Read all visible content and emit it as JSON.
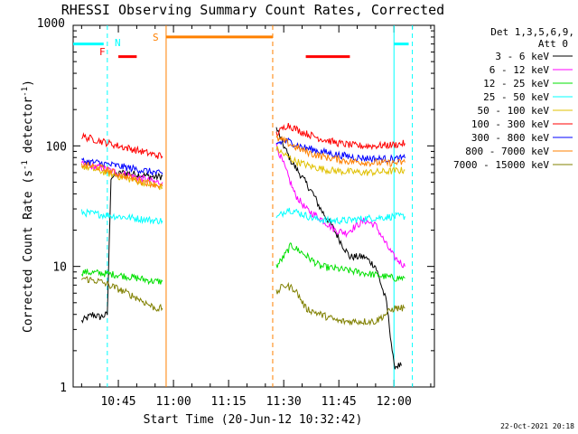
{
  "chart_data": {
    "type": "line",
    "title": "RHESSI Observing Summary Count Rates, Corrected",
    "xlabel": "Start Time (20-Jun-12 10:32:42)",
    "ylabel_main": "Corrected Count Rate (s",
    "ylabel_sup1": "-1",
    "ylabel_mid": " detector",
    "ylabel_sup2": "-1",
    "ylabel_end": ")",
    "y_scale": "log",
    "ylim": [
      1,
      1000
    ],
    "xlim": [
      "10:32:42",
      "12:11:00"
    ],
    "xticks": [
      "10:45",
      "11:00",
      "11:15",
      "11:30",
      "11:45",
      "12:00"
    ],
    "yticks": [
      "1",
      "10",
      "100",
      "1000"
    ],
    "legend_header": [
      "Det 1,3,5,6,9,",
      "Att 0"
    ],
    "legend_placement": "right",
    "footer_date": "22-Oct-2021 20:18",
    "flags": {
      "N_label": "N",
      "F_label": "F",
      "S_label": "S"
    },
    "series": [
      {
        "name": "3 - 6 keV",
        "color": "#000000",
        "segments": [
          [
            [
              "10:35",
              3.5
            ],
            [
              "10:38",
              4
            ],
            [
              "10:40",
              3.8
            ],
            [
              "10:42",
              4
            ],
            [
              "10:43",
              55
            ],
            [
              "10:46",
              60
            ],
            [
              "10:50",
              58
            ],
            [
              "10:55",
              55
            ],
            [
              "10:57",
              56
            ]
          ],
          [
            [
              "11:28",
              140
            ],
            [
              "11:30",
              100
            ],
            [
              "11:32",
              75
            ],
            [
              "11:35",
              55
            ],
            [
              "11:38",
              40
            ],
            [
              "11:40",
              30
            ],
            [
              "11:43",
              22
            ],
            [
              "11:46",
              15
            ],
            [
              "11:48",
              12
            ],
            [
              "11:52",
              12
            ],
            [
              "11:55",
              10
            ],
            [
              "11:58",
              5
            ],
            [
              "12:00",
              1.5
            ],
            [
              "12:02",
              1.5
            ]
          ]
        ]
      },
      {
        "name": "6 - 12 keV",
        "color": "#ff00ff",
        "segments": [
          [
            [
              "10:35",
              70
            ],
            [
              "10:40",
              66
            ],
            [
              "10:45",
              60
            ],
            [
              "10:50",
              55
            ],
            [
              "10:55",
              50
            ],
            [
              "10:57",
              50
            ]
          ],
          [
            [
              "11:28",
              100
            ],
            [
              "11:30",
              70
            ],
            [
              "11:33",
              40
            ],
            [
              "11:36",
              30
            ],
            [
              "11:40",
              25
            ],
            [
              "11:44",
              20
            ],
            [
              "11:47",
              19
            ],
            [
              "11:50",
              22
            ],
            [
              "11:52",
              24
            ],
            [
              "11:55",
              22
            ],
            [
              "11:58",
              15
            ],
            [
              "12:00",
              12
            ],
            [
              "12:03",
              10
            ]
          ]
        ]
      },
      {
        "name": "12 - 25 keV",
        "color": "#00e000",
        "segments": [
          [
            [
              "10:35",
              9
            ],
            [
              "10:40",
              8.8
            ],
            [
              "10:45",
              8.5
            ],
            [
              "10:50",
              8
            ],
            [
              "10:55",
              7.5
            ],
            [
              "10:57",
              7.5
            ]
          ],
          [
            [
              "11:28",
              10
            ],
            [
              "11:30",
              12
            ],
            [
              "11:32",
              15
            ],
            [
              "11:35",
              13
            ],
            [
              "11:40",
              10
            ],
            [
              "11:45",
              9.5
            ],
            [
              "11:50",
              9
            ],
            [
              "11:55",
              8.5
            ],
            [
              "12:00",
              8
            ],
            [
              "12:03",
              8
            ]
          ]
        ]
      },
      {
        "name": "25 - 50 keV",
        "color": "#00ffff",
        "segments": [
          [
            [
              "10:35",
              28
            ],
            [
              "10:40",
              27
            ],
            [
              "10:45",
              26
            ],
            [
              "10:50",
              25
            ],
            [
              "10:55",
              24
            ],
            [
              "10:57",
              24
            ]
          ],
          [
            [
              "11:28",
              25
            ],
            [
              "11:31",
              30
            ],
            [
              "11:34",
              28
            ],
            [
              "11:38",
              25
            ],
            [
              "11:42",
              24
            ],
            [
              "11:47",
              24
            ],
            [
              "11:52",
              25
            ],
            [
              "11:57",
              25.5
            ],
            [
              "12:00",
              26
            ],
            [
              "12:03",
              26
            ]
          ]
        ]
      },
      {
        "name": "50 - 100 keV",
        "color": "#e0c000",
        "segments": [
          [
            [
              "10:35",
              68
            ],
            [
              "10:40",
              62
            ],
            [
              "10:45",
              56
            ],
            [
              "10:50",
              51
            ],
            [
              "10:55",
              47
            ],
            [
              "10:57",
              45
            ]
          ],
          [
            [
              "11:28",
              95
            ],
            [
              "11:30",
              85
            ],
            [
              "11:33",
              75
            ],
            [
              "11:37",
              68
            ],
            [
              "11:42",
              63
            ],
            [
              "11:47",
              61
            ],
            [
              "11:52",
              60
            ],
            [
              "11:57",
              61
            ],
            [
              "12:00",
              62
            ],
            [
              "12:03",
              63
            ]
          ]
        ]
      },
      {
        "name": "100 - 300 keV",
        "color": "#ff0000",
        "segments": [
          [
            [
              "10:35",
              120
            ],
            [
              "10:40",
              110
            ],
            [
              "10:45",
              100
            ],
            [
              "10:50",
              92
            ],
            [
              "10:55",
              84
            ],
            [
              "10:57",
              82
            ]
          ],
          [
            [
              "11:28",
              125
            ],
            [
              "11:31",
              150
            ],
            [
              "11:35",
              130
            ],
            [
              "11:40",
              115
            ],
            [
              "11:45",
              105
            ],
            [
              "11:50",
              100
            ],
            [
              "11:55",
              100
            ],
            [
              "12:00",
              102
            ],
            [
              "12:03",
              105
            ]
          ]
        ]
      },
      {
        "name": "300 - 800 keV",
        "color": "#0000ff",
        "segments": [
          [
            [
              "10:35",
              75
            ],
            [
              "10:40",
              72
            ],
            [
              "10:45",
              68
            ],
            [
              "10:50",
              64
            ],
            [
              "10:55",
              60
            ],
            [
              "10:57",
              58
            ]
          ],
          [
            [
              "11:28",
              105
            ],
            [
              "11:31",
              110
            ],
            [
              "11:35",
              98
            ],
            [
              "11:40",
              90
            ],
            [
              "11:45",
              84
            ],
            [
              "11:50",
              80
            ],
            [
              "11:55",
              78
            ],
            [
              "12:00",
              78
            ],
            [
              "12:03",
              79
            ]
          ]
        ]
      },
      {
        "name": "800 - 7000 keV",
        "color": "#ff8000",
        "segments": [
          [
            [
              "10:35",
              70
            ],
            [
              "10:40",
              66
            ],
            [
              "10:45",
              58
            ],
            [
              "10:50",
              52
            ],
            [
              "10:55",
              48
            ],
            [
              "10:57",
              46
            ]
          ],
          [
            [
              "11:28",
              115
            ],
            [
              "11:30",
              110
            ],
            [
              "11:34",
              95
            ],
            [
              "11:38",
              85
            ],
            [
              "11:42",
              80
            ],
            [
              "11:47",
              75
            ],
            [
              "11:52",
              73
            ],
            [
              "11:57",
              72
            ],
            [
              "12:00",
              72
            ],
            [
              "12:03",
              73
            ]
          ]
        ]
      },
      {
        "name": "7000 - 15000 keV",
        "color": "#808000",
        "segments": [
          [
            [
              "10:35",
              8
            ],
            [
              "10:40",
              7.5
            ],
            [
              "10:45",
              6.5
            ],
            [
              "10:50",
              5.5
            ],
            [
              "10:55",
              4.5
            ],
            [
              "10:57",
              4.5
            ]
          ],
          [
            [
              "11:28",
              6
            ],
            [
              "11:30",
              7
            ],
            [
              "11:33",
              6.5
            ],
            [
              "11:36",
              4.5
            ],
            [
              "11:40",
              4
            ],
            [
              "11:45",
              3.5
            ],
            [
              "11:50",
              3.5
            ],
            [
              "11:55",
              3.5
            ],
            [
              "12:00",
              4.5
            ],
            [
              "12:03",
              4.5
            ]
          ]
        ]
      }
    ],
    "flag_bars": [
      {
        "label": "cyan top-left",
        "color": "#00ffff",
        "start": "10:32:42",
        "end": "10:41",
        "level": 700
      },
      {
        "label": "cyan top-right",
        "color": "#00ffff",
        "start": "12:00",
        "end": "12:04",
        "level": 700
      },
      {
        "label": "F red 1",
        "color": "#ff0000",
        "start": "10:45",
        "end": "10:50",
        "level": 550
      },
      {
        "label": "S orange",
        "color": "#ff8000",
        "start": "10:58",
        "end": "11:27",
        "level": 800
      },
      {
        "label": "red 2",
        "color": "#ff0000",
        "start": "11:36",
        "end": "11:48",
        "level": 550
      }
    ],
    "vlines": [
      {
        "time": "10:42",
        "color": "#00ffff",
        "style": "dashed"
      },
      {
        "time": "10:58",
        "color": "#ff8000",
        "style": "solid"
      },
      {
        "time": "11:27",
        "color": "#ff8000",
        "style": "dashed"
      },
      {
        "time": "12:00",
        "color": "#00ffff",
        "style": "solid"
      },
      {
        "time": "12:05",
        "color": "#00ffff",
        "style": "dashed"
      }
    ]
  }
}
